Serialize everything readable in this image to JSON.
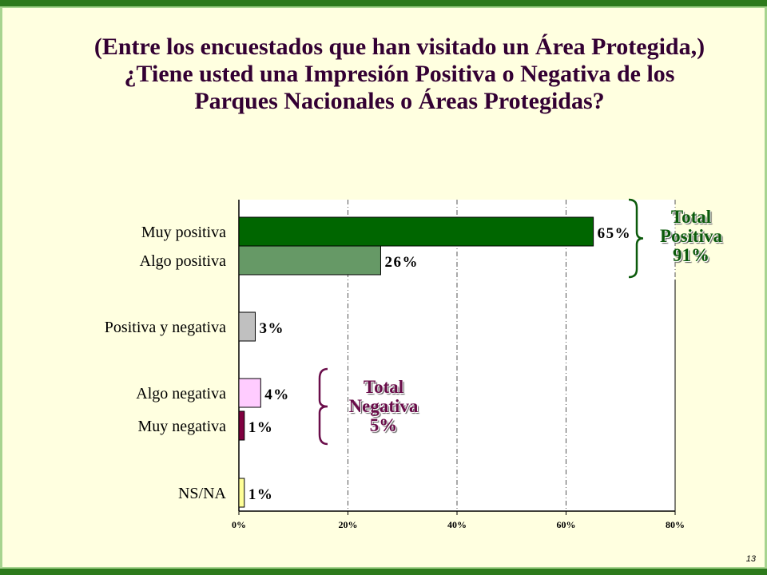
{
  "slide": {
    "title": "(Entre los encuestados que han visitado un Área Protegida,) ¿Tiene usted una Impresión Positiva o Negativa de los Parques Nacionales o Áreas Protegidas?",
    "page_number": "13"
  },
  "annotations": {
    "positive": {
      "line1": "Total",
      "line2": "Positiva",
      "line3": "91%",
      "color": "#0b5a0b"
    },
    "negative": {
      "line1": "Total",
      "line2": "Negativa",
      "line3": "5%",
      "color": "#6a0d4a"
    }
  },
  "chart_data": {
    "type": "bar",
    "orientation": "horizontal",
    "categories": [
      "Muy positiva",
      "Algo positiva",
      "Positiva y negativa",
      "Algo negativa",
      "Muy negativa",
      "NS/NA"
    ],
    "values": [
      65,
      26,
      3,
      4,
      1,
      1
    ],
    "value_labels": [
      "65%",
      "26%",
      "3%",
      "4%",
      "1%",
      "1%"
    ],
    "colors": [
      "#006600",
      "#669966",
      "#c0c0c0",
      "#ffccff",
      "#800040",
      "#ffff99"
    ],
    "xlim": [
      0,
      80
    ],
    "xticks": [
      "0%",
      "20%",
      "40%",
      "60%",
      "80%"
    ],
    "grid": true
  }
}
